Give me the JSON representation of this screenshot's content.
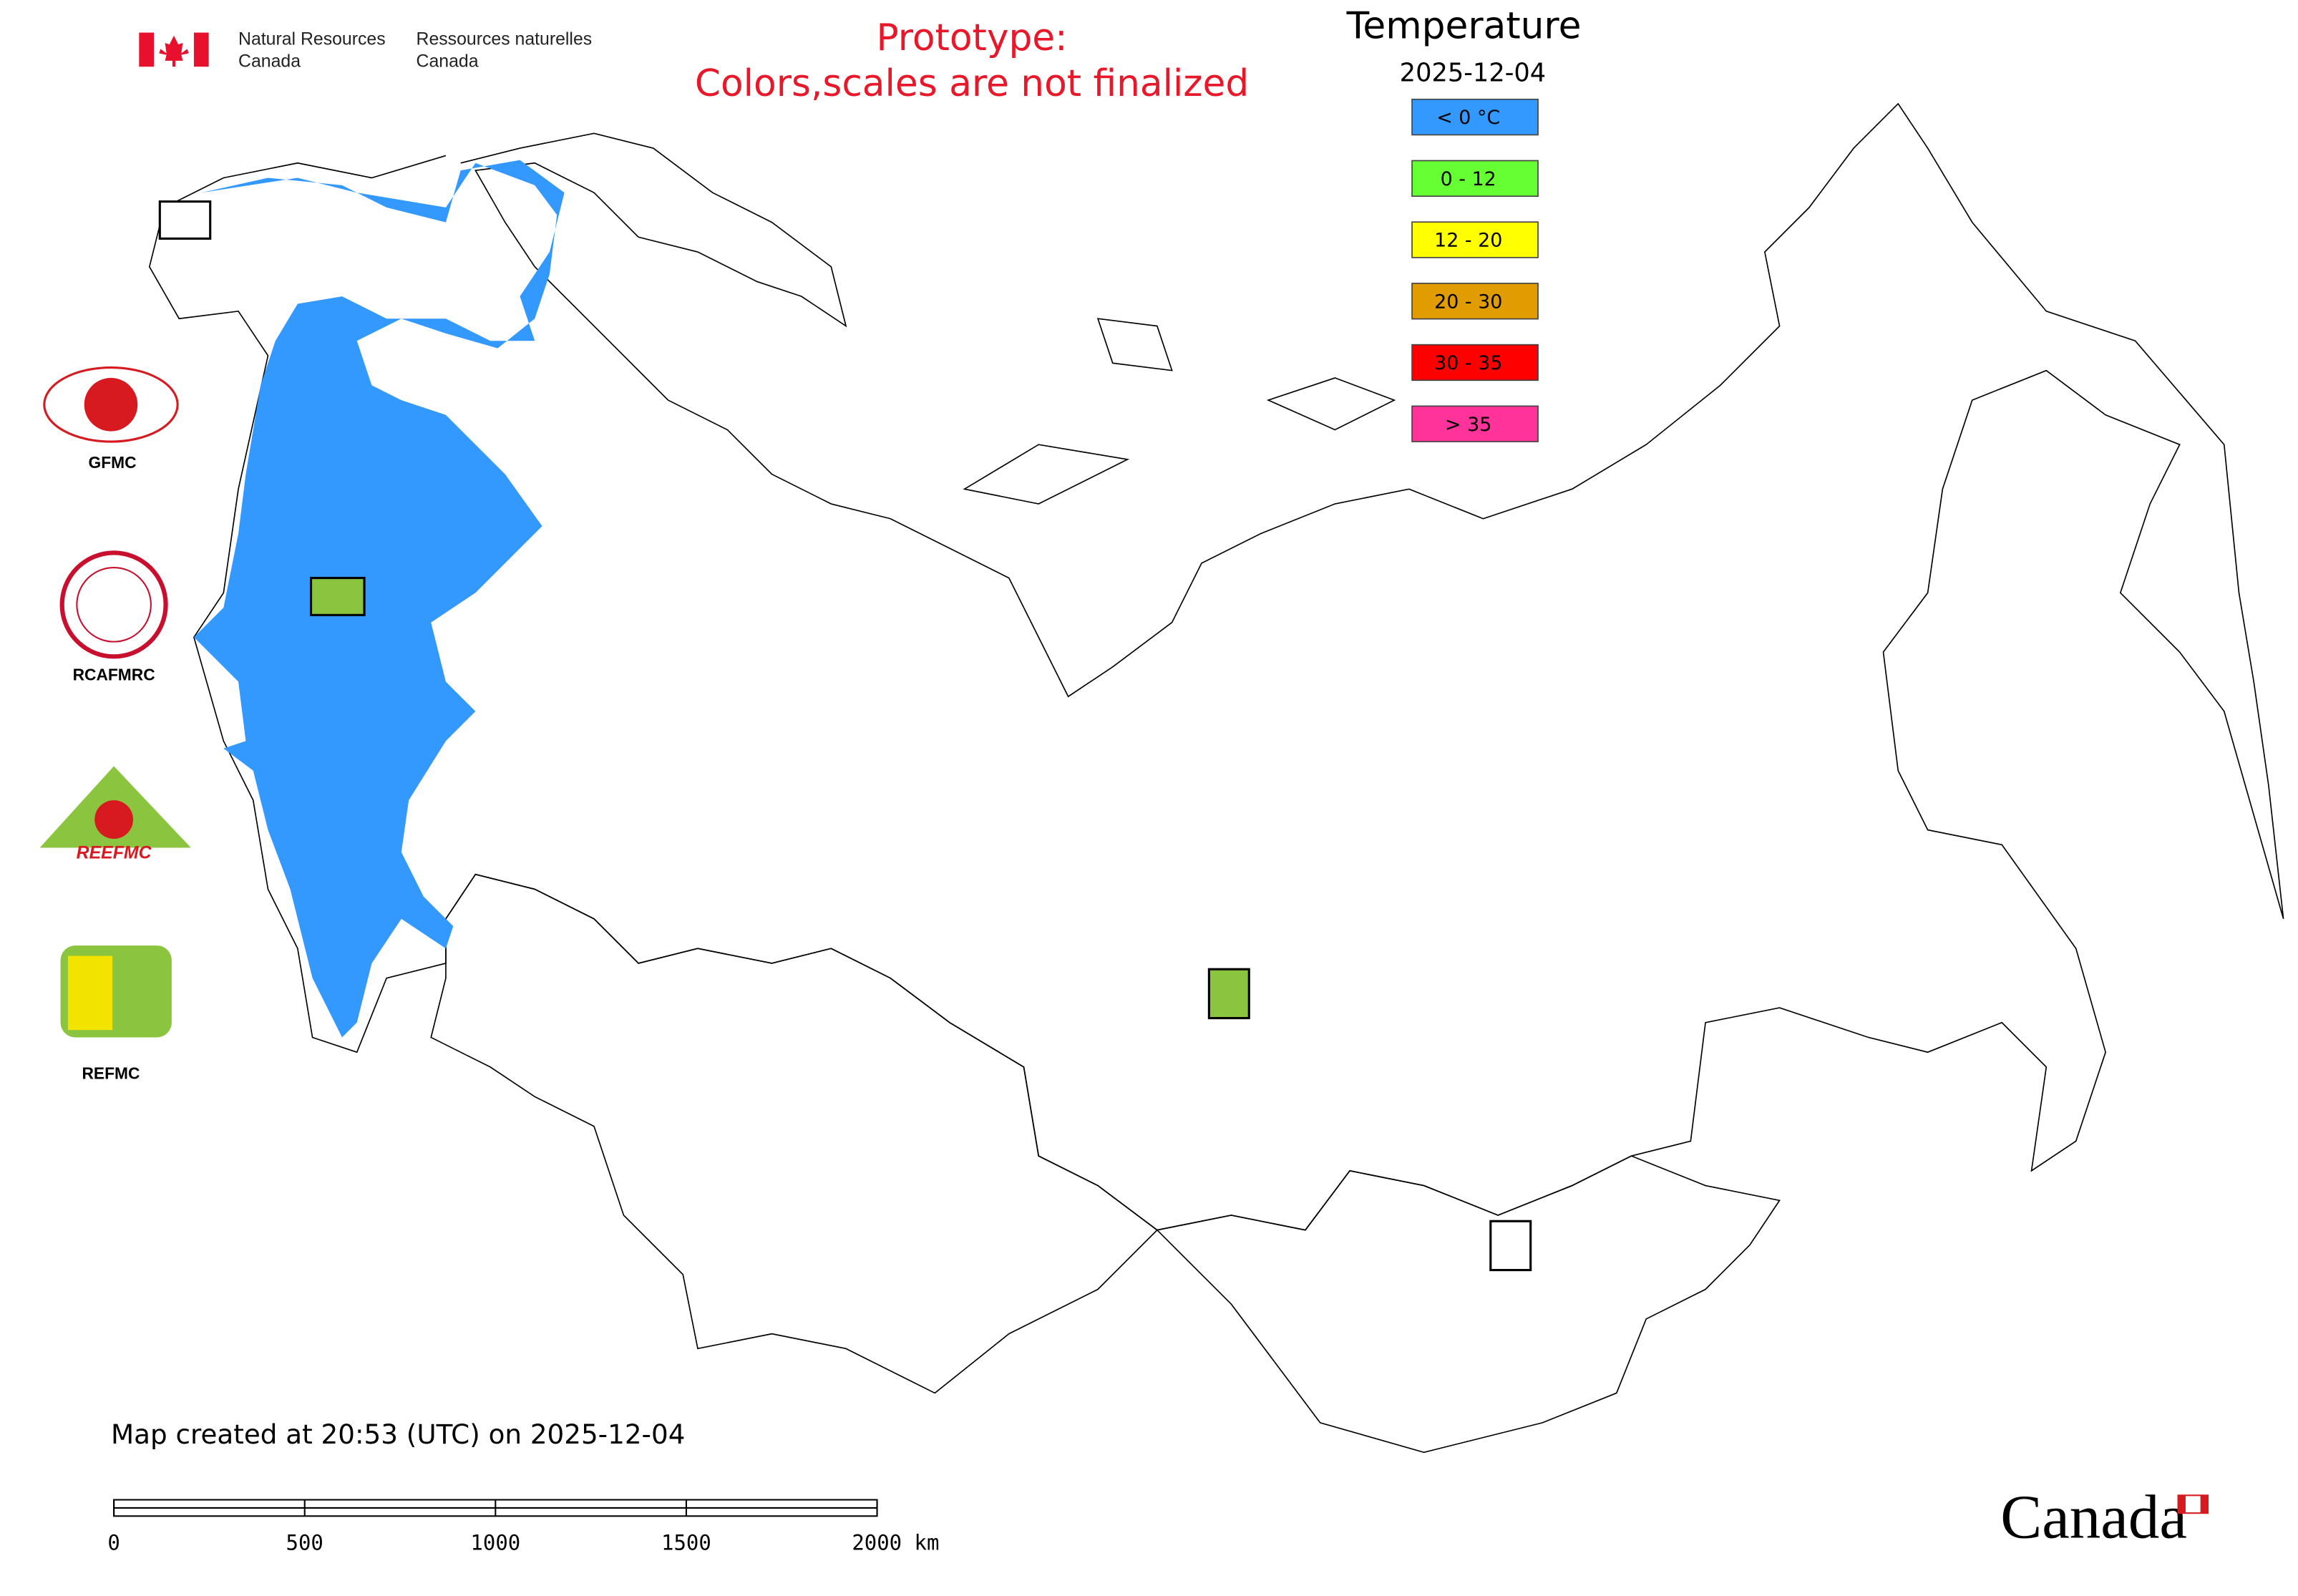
{
  "header": {
    "dept_en": [
      "Natural Resources",
      "Canada"
    ],
    "dept_fr": [
      "Ressources naturelles",
      "Canada"
    ]
  },
  "notice": [
    "Prototype:",
    "Colors,scales are not finalized"
  ],
  "legend": {
    "title": "Temperature",
    "date": "2025-12-04",
    "items": [
      {
        "label": "< 0 °C",
        "color": "#3399ff"
      },
      {
        "label": "0 - 12",
        "color": "#66ff33"
      },
      {
        "label": "12 - 20",
        "color": "#ffff00"
      },
      {
        "label": "20 - 30",
        "color": "#e09c00"
      },
      {
        "label": "30 - 35",
        "color": "#ff0000"
      },
      {
        "label": "> 35",
        "color": "#ff3399"
      }
    ]
  },
  "logos": [
    "GFMC",
    "RCAFMRC",
    "REEFMC",
    "REFMC"
  ],
  "footer": {
    "created": "Map created at 20:53 (UTC) on 2025-12-04",
    "scale_labels": [
      "0",
      "500",
      "1000",
      "1500",
      "2000 km"
    ],
    "wordmark": "Canada"
  }
}
